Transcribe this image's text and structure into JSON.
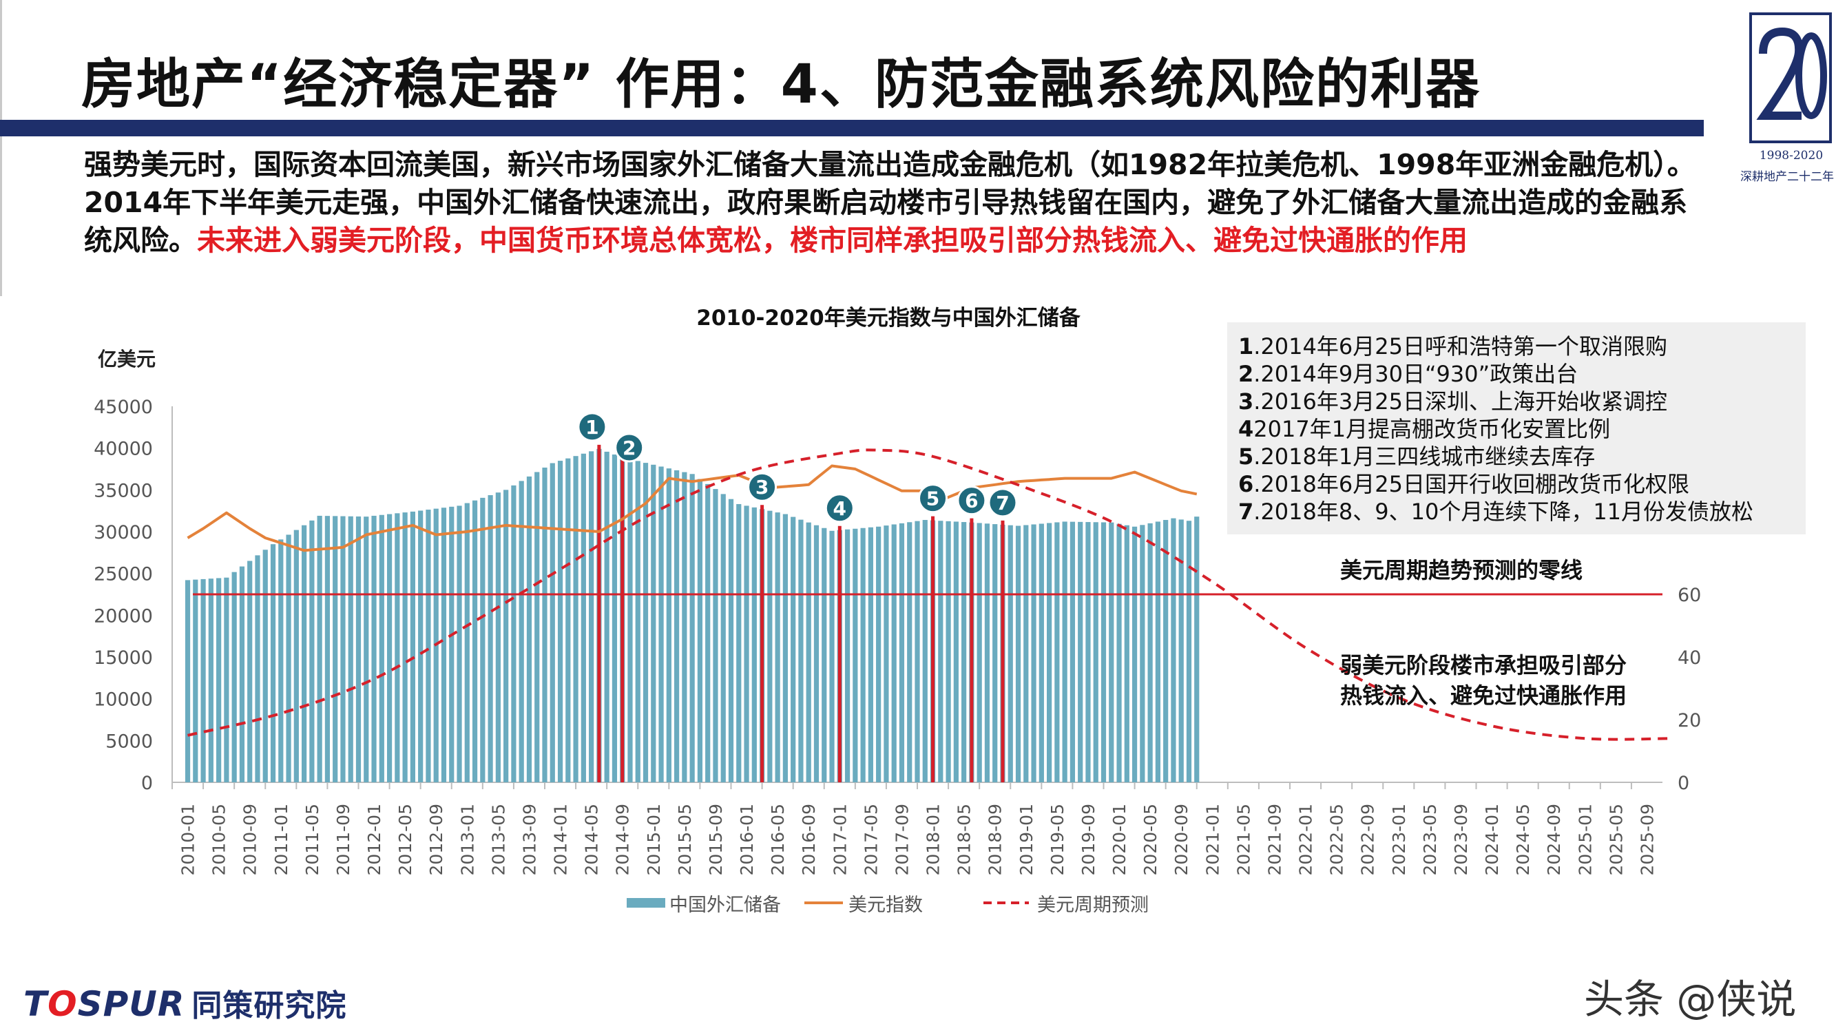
{
  "slide": {
    "title": "房地产“经济稳定器” 作用：4、防范金融系统风险的利器",
    "logo_years": "1998-2020",
    "logo_sub": "深耕地产二十二年",
    "intro_normal": "强势美元时，国际资本回流美国，新兴市场国家外汇储备大量流出造成金融危机（如1982年拉美危机、1998年亚洲金融危机）。2014年下半年美元走强，中国外汇储备快速流出，政府果断启动楼市引导热钱留在国内，避免了外汇储备大量流出造成的金融系统风险。",
    "intro_highlight": "未来进入弱美元阶段，中国货币环境总体宽松，楼市同样承担吸引部分热钱流入、避免过快通胀的作用",
    "footer_brand_a": "T",
    "footer_brand_o": "O",
    "footer_brand_b": "SPUR",
    "footer_brand_cn": "同策研究院",
    "watermark": "头条 @侠说"
  },
  "notes": [
    {
      "num": "1",
      "text": ".2014年6月25日呼和浩特第一个取消限购"
    },
    {
      "num": "2",
      "text": ".2014年9月30日“930”政策出台"
    },
    {
      "num": "3",
      "text": ".2016年3月25日深圳、上海开始收紧调控"
    },
    {
      "num": "4",
      "text": "2017年1月提高棚改货币化安置比例"
    },
    {
      "num": "5",
      "text": ".2018年1月三四线城市继续去库存"
    },
    {
      "num": "6",
      "text": ".2018年6月25日国开行收回棚改货币化权限"
    },
    {
      "num": "7",
      "text": ".2018年8、9、10个月连续下降，11月份发债放松"
    }
  ],
  "annotations": {
    "zero_line": "美元周期趋势预测的零线",
    "weak_dollar_1": "弱美元阶段楼市承担吸引部分",
    "weak_dollar_2": "热钱流入、避免过快通胀作用"
  },
  "colors": {
    "bar": "#6aabbf",
    "usd_line": "#e4823a",
    "forecast": "#d6202a",
    "zero_line": "#d6202a",
    "marker": "#1f6a7d",
    "title_bar": "#1e2f6b",
    "highlight": "#e31e24"
  },
  "chart_data": {
    "type": "bar",
    "title": "2010-2020年美元指数与中国外汇储备",
    "ylabel": "亿美元",
    "ylim": [
      0,
      45000
    ],
    "y_ticks": [
      0,
      5000,
      10000,
      15000,
      20000,
      25000,
      30000,
      35000,
      40000,
      45000
    ],
    "y2lim": [
      0,
      120
    ],
    "y2_ticks": [
      0,
      20,
      40,
      60
    ],
    "x_tick_labels": [
      "2010-01",
      "2010-05",
      "2010-09",
      "2011-01",
      "2011-05",
      "2011-09",
      "2012-01",
      "2012-05",
      "2012-09",
      "2013-01",
      "2013-05",
      "2013-09",
      "2014-01",
      "2014-05",
      "2014-09",
      "2015-01",
      "2015-05",
      "2015-09",
      "2016-01",
      "2016-05",
      "2016-09",
      "2017-01",
      "2017-05",
      "2017-09",
      "2018-01",
      "2018-05",
      "2018-09",
      "2019-01",
      "2019-05",
      "2019-09",
      "2020-01",
      "2020-05",
      "2020-09",
      "2021-01",
      "2021-05",
      "2021-09",
      "2022-01",
      "2022-05",
      "2022-09",
      "2023-01",
      "2023-05",
      "2023-09",
      "2024-01",
      "2024-05",
      "2024-09",
      "2025-01",
      "2025-05",
      "2025-09"
    ],
    "x_start": "2010-01",
    "legend": [
      "中国外汇储备",
      "美元指数",
      "美元周期预测"
    ],
    "legend_position": "bottom",
    "series": [
      {
        "name": "中国外汇储备",
        "axis": "left",
        "type": "bar",
        "anchors": [
          [
            "2010-01",
            24200
          ],
          [
            "2010-06",
            24500
          ],
          [
            "2010-12",
            28500
          ],
          [
            "2011-06",
            31900
          ],
          [
            "2011-12",
            31800
          ],
          [
            "2012-06",
            32400
          ],
          [
            "2012-12",
            33100
          ],
          [
            "2013-06",
            35000
          ],
          [
            "2013-12",
            38200
          ],
          [
            "2014-06",
            39900
          ],
          [
            "2014-09",
            38900
          ],
          [
            "2015-06",
            36900
          ],
          [
            "2015-12",
            33300
          ],
          [
            "2016-06",
            32100
          ],
          [
            "2016-12",
            30100
          ],
          [
            "2017-06",
            30600
          ],
          [
            "2017-12",
            31400
          ],
          [
            "2018-06",
            31100
          ],
          [
            "2018-12",
            30700
          ],
          [
            "2019-06",
            31200
          ],
          [
            "2019-12",
            31100
          ],
          [
            "2020-03",
            30600
          ],
          [
            "2020-08",
            31600
          ],
          [
            "2020-10",
            31300
          ],
          [
            "2020-11",
            31800
          ]
        ]
      },
      {
        "name": "美元指数",
        "axis": "right",
        "type": "line",
        "anchors": [
          [
            "2010-01",
            78
          ],
          [
            "2010-03",
            81
          ],
          [
            "2010-06",
            86
          ],
          [
            "2010-09",
            81
          ],
          [
            "2010-11",
            78
          ],
          [
            "2011-04",
            74
          ],
          [
            "2011-09",
            75
          ],
          [
            "2011-12",
            79
          ],
          [
            "2012-06",
            82
          ],
          [
            "2012-09",
            79
          ],
          [
            "2013-01",
            80
          ],
          [
            "2013-06",
            82
          ],
          [
            "2013-12",
            81
          ],
          [
            "2014-06",
            80
          ],
          [
            "2014-09",
            84
          ],
          [
            "2014-12",
            89
          ],
          [
            "2015-03",
            97
          ],
          [
            "2015-06",
            96
          ],
          [
            "2015-12",
            98
          ],
          [
            "2016-04",
            94
          ],
          [
            "2016-09",
            95
          ],
          [
            "2016-12",
            101
          ],
          [
            "2017-03",
            100
          ],
          [
            "2017-09",
            93
          ],
          [
            "2017-12",
            93
          ],
          [
            "2018-02",
            90
          ],
          [
            "2018-06",
            94
          ],
          [
            "2018-12",
            96
          ],
          [
            "2019-06",
            97
          ],
          [
            "2019-12",
            97
          ],
          [
            "2020-03",
            99
          ],
          [
            "2020-06",
            96
          ],
          [
            "2020-09",
            93
          ],
          [
            "2020-11",
            92
          ]
        ]
      },
      {
        "name": "美元周期预测",
        "axis": "right",
        "type": "line-dashed",
        "anchors": [
          [
            "2010-01",
            15
          ],
          [
            "2011-01",
            22
          ],
          [
            "2012-01",
            33
          ],
          [
            "2013-01",
            50
          ],
          [
            "2014-01",
            68
          ],
          [
            "2015-01",
            86
          ],
          [
            "2016-01",
            99
          ],
          [
            "2017-01",
            105
          ],
          [
            "2017-06",
            106
          ],
          [
            "2018-01",
            104
          ],
          [
            "2019-01",
            94
          ],
          [
            "2020-01",
            82
          ],
          [
            "2021-01",
            64
          ],
          [
            "2022-01",
            43
          ],
          [
            "2023-01",
            27
          ],
          [
            "2024-01",
            18
          ],
          [
            "2025-01",
            14
          ],
          [
            "2025-12",
            14
          ]
        ]
      }
    ],
    "zero_line_value": 60,
    "event_markers": [
      {
        "label": "1",
        "date": "2014-06"
      },
      {
        "label": "2",
        "date": "2014-09"
      },
      {
        "label": "3",
        "date": "2016-03"
      },
      {
        "label": "4",
        "date": "2017-01"
      },
      {
        "label": "5",
        "date": "2018-01"
      },
      {
        "label": "6",
        "date": "2018-06"
      },
      {
        "label": "7",
        "date": "2018-10"
      }
    ],
    "grid": false
  }
}
